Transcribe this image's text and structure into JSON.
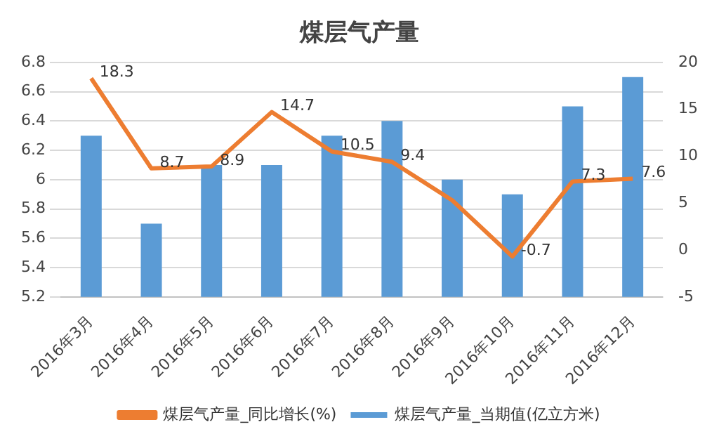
{
  "chart_data": {
    "type": "bar",
    "title": "煤层气产量",
    "categories": [
      "2016年3月",
      "2016年4月",
      "2016年5月",
      "2016年6月",
      "2016年7月",
      "2016年8月",
      "2016年9月",
      "2016年10月",
      "2016年11月",
      "2016年12月"
    ],
    "series": [
      {
        "name": "煤层气产量_当期值(亿立方米)",
        "color": "#5b9bd5",
        "values": [
          6.3,
          5.7,
          6.1,
          6.1,
          6.3,
          6.4,
          6.0,
          5.9,
          6.5,
          6.7
        ]
      },
      {
        "name": "煤层气产量_同比增长(%)",
        "type": "line",
        "axis": "y2",
        "color": "#ed7d31",
        "values": [
          18.3,
          8.7,
          8.9,
          14.7,
          10.5,
          9.4,
          5.3,
          -0.7,
          7.3,
          7.6
        ],
        "value_labels": [
          "18.3",
          "8.7",
          "8.9",
          "14.7",
          "10.5",
          "9.4",
          null,
          "-0.7",
          "7.3",
          "7.6"
        ]
      }
    ],
    "ylim": [
      5.2,
      6.8
    ],
    "yticks": [
      5.2,
      5.4,
      5.6,
      5.8,
      6,
      6.2,
      6.4,
      6.6,
      6.8
    ],
    "y2lim": [
      -5,
      20
    ],
    "y2ticks": [
      -5,
      0,
      5,
      10,
      15,
      20
    ],
    "grid": "y",
    "legend": "bottom",
    "marker": "none"
  }
}
